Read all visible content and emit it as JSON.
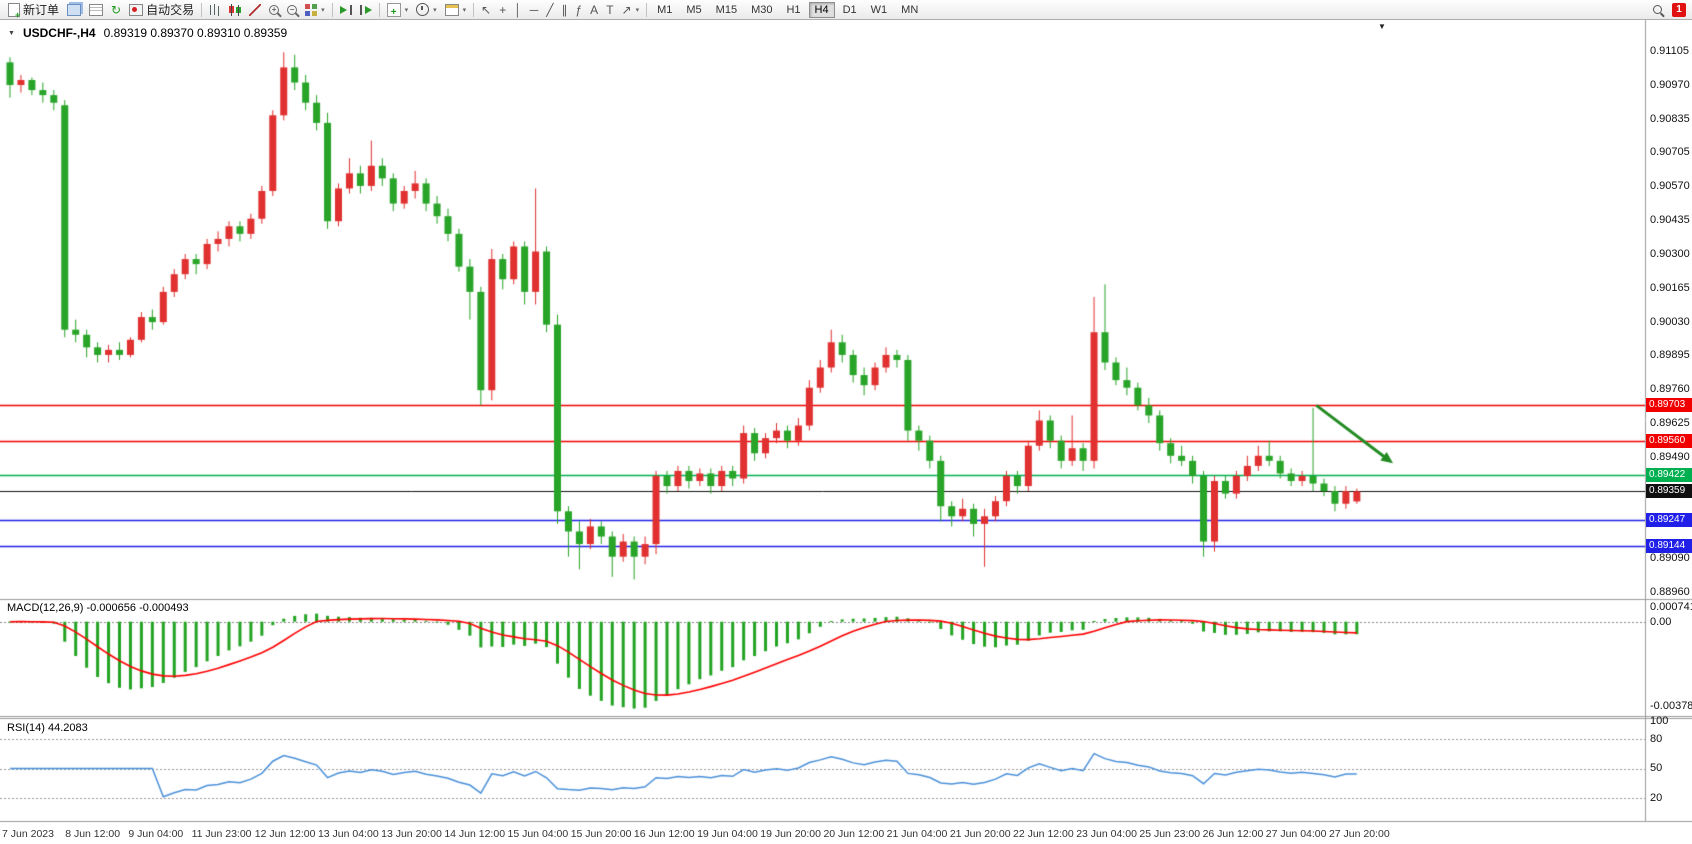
{
  "toolbar": {
    "new_order_label": "新订单",
    "auto_trading_label": "自动交易",
    "timeframes": [
      "M1",
      "M5",
      "M15",
      "M30",
      "H1",
      "H4",
      "D1",
      "W1",
      "MN"
    ],
    "active_timeframe": "H4",
    "notification_count": "1"
  },
  "icons": {
    "refresh": "↻",
    "caret": "▾",
    "down_triangle": "▼",
    "cursor": "↖",
    "crosshair": "+",
    "vertical_line": "│",
    "horizontal_line": "─",
    "trendline": "╱",
    "channel": "∥",
    "fibonacci": "ƒ",
    "text_tool": "A",
    "label_tool": "T",
    "arrow_tool": "↗",
    "zoom_in": "+",
    "zoom_out": "−",
    "indicators_plus": "+"
  },
  "chart": {
    "title": "USDCHF-,H4",
    "ohlc": "0.89319 0.89370 0.89310 0.89359",
    "macd_label": "MACD(12,26,9) -0.000656 -0.000493",
    "rsi_label": "RSI(14) 44.2083",
    "price_axis_labels": [
      "0.91105",
      "0.90970",
      "0.90835",
      "0.90705",
      "0.90570",
      "0.90435",
      "0.90300",
      "0.90165",
      "0.90030",
      "0.89895",
      "0.89760",
      "0.89625",
      "0.89490",
      "0.89355",
      "0.89225",
      "0.89090",
      "0.88960"
    ],
    "macd_axis_labels": {
      "max": "0.000741",
      "zero": "0.00",
      "min": "-0.003781"
    },
    "rsi_axis_labels": [
      "100",
      "80",
      "50",
      "20"
    ],
    "time_axis_labels": [
      "7 Jun 2023",
      "8 Jun 12:00",
      "9 Jun 04:00",
      "11 Jun 23:00",
      "12 Jun 12:00",
      "13 Jun 04:00",
      "13 Jun 20:00",
      "14 Jun 12:00",
      "15 Jun 04:00",
      "15 Jun 20:00",
      "16 Jun 12:00",
      "19 Jun 04:00",
      "19 Jun 20:00",
      "20 Jun 12:00",
      "21 Jun 04:00",
      "21 Jun 20:00",
      "22 Jun 12:00",
      "23 Jun 04:00",
      "25 Jun 23:00",
      "26 Jun 12:00",
      "27 Jun 04:00",
      "27 Jun 20:00"
    ]
  },
  "chart_data": {
    "type": "candlestick",
    "symbol": "USDCHF-",
    "period": "H4",
    "price_range": {
      "max": 0.91105,
      "min": 0.8896
    },
    "colors": {
      "up": "#e03030",
      "down": "#28a428",
      "macd_hist": "#22a322",
      "macd_signal": "#ff0000",
      "rsi": "#4a90d9",
      "arrow": "#228b22"
    },
    "levels": [
      {
        "price": 0.89703,
        "color": "#f20000",
        "label": "0.89703"
      },
      {
        "price": 0.8956,
        "color": "#f20000",
        "label": "0.89560"
      },
      {
        "price": 0.89422,
        "color": "#00b050",
        "label": "0.89422"
      },
      {
        "price": 0.89359,
        "color": "#101010",
        "label": "0.89359"
      },
      {
        "price": 0.89247,
        "color": "#2020e8",
        "label": "0.89247"
      },
      {
        "price": 0.89144,
        "color": "#2020e8",
        "label": "0.89144"
      }
    ],
    "annotation_arrow": {
      "from_index": 119.3,
      "from_price": 0.897,
      "to_index": 126.3,
      "to_price": 0.8947
    },
    "macd": {
      "fast": 12,
      "slow": 26,
      "signal": 9,
      "current": -0.000656,
      "current_signal": -0.000493,
      "range": {
        "max": 0.000741,
        "min": -0.003781
      }
    },
    "rsi": {
      "period": 14,
      "current": 44.2083,
      "levels": [
        80,
        50,
        20
      ],
      "range": {
        "max": 100,
        "min": 0
      }
    },
    "candles": [
      [
        0.9106,
        0.9108,
        0.9092,
        0.9097
      ],
      [
        0.9097,
        0.9101,
        0.9094,
        0.9099
      ],
      [
        0.9099,
        0.91,
        0.9093,
        0.9095
      ],
      [
        0.9095,
        0.9098,
        0.909,
        0.9093
      ],
      [
        0.9093,
        0.9095,
        0.9087,
        0.909
      ],
      [
        0.9089,
        0.9091,
        0.8997,
        0.9
      ],
      [
        0.9,
        0.9004,
        0.8995,
        0.8998
      ],
      [
        0.8998,
        0.9,
        0.8989,
        0.8993
      ],
      [
        0.8993,
        0.8995,
        0.8987,
        0.899
      ],
      [
        0.899,
        0.8994,
        0.8987,
        0.8992
      ],
      [
        0.8992,
        0.8995,
        0.8988,
        0.899
      ],
      [
        0.899,
        0.8997,
        0.8989,
        0.8996
      ],
      [
        0.8996,
        0.9007,
        0.8995,
        0.9005
      ],
      [
        0.9005,
        0.9008,
        0.9,
        0.9003
      ],
      [
        0.9003,
        0.9017,
        0.9002,
        0.9015
      ],
      [
        0.9015,
        0.9024,
        0.9013,
        0.9022
      ],
      [
        0.9022,
        0.903,
        0.902,
        0.9028
      ],
      [
        0.9028,
        0.903,
        0.9022,
        0.9026
      ],
      [
        0.9026,
        0.9036,
        0.9024,
        0.9034
      ],
      [
        0.9034,
        0.9039,
        0.9031,
        0.9036
      ],
      [
        0.9036,
        0.9043,
        0.9033,
        0.9041
      ],
      [
        0.9041,
        0.9043,
        0.9035,
        0.9038
      ],
      [
        0.9038,
        0.9046,
        0.9036,
        0.9044
      ],
      [
        0.9044,
        0.9057,
        0.9042,
        0.9055
      ],
      [
        0.9055,
        0.9087,
        0.9053,
        0.9085
      ],
      [
        0.9085,
        0.911,
        0.9083,
        0.9104
      ],
      [
        0.9104,
        0.9109,
        0.9095,
        0.9098
      ],
      [
        0.9098,
        0.9101,
        0.9087,
        0.909
      ],
      [
        0.909,
        0.9093,
        0.9079,
        0.9082
      ],
      [
        0.9082,
        0.9086,
        0.904,
        0.9043
      ],
      [
        0.9043,
        0.9058,
        0.9041,
        0.9056
      ],
      [
        0.9056,
        0.9068,
        0.9054,
        0.9062
      ],
      [
        0.9062,
        0.9065,
        0.9054,
        0.9057
      ],
      [
        0.9057,
        0.9075,
        0.9055,
        0.9065
      ],
      [
        0.9065,
        0.9068,
        0.9057,
        0.906
      ],
      [
        0.906,
        0.9062,
        0.9047,
        0.905
      ],
      [
        0.905,
        0.9057,
        0.9048,
        0.9055
      ],
      [
        0.9055,
        0.9063,
        0.9052,
        0.9058
      ],
      [
        0.9058,
        0.906,
        0.9047,
        0.905
      ],
      [
        0.905,
        0.9053,
        0.9042,
        0.9045
      ],
      [
        0.9045,
        0.9048,
        0.9035,
        0.9038
      ],
      [
        0.9038,
        0.904,
        0.9023,
        0.9025
      ],
      [
        0.9025,
        0.9028,
        0.9004,
        0.9015
      ],
      [
        0.9015,
        0.9017,
        0.897,
        0.8976
      ],
      [
        0.8976,
        0.9032,
        0.8972,
        0.9028
      ],
      [
        0.9028,
        0.903,
        0.9016,
        0.902
      ],
      [
        0.902,
        0.9035,
        0.9018,
        0.9033
      ],
      [
        0.9033,
        0.9035,
        0.901,
        0.9015
      ],
      [
        0.9015,
        0.9056,
        0.901,
        0.9031
      ],
      [
        0.9031,
        0.9033,
        0.8999,
        0.9002
      ],
      [
        0.9002,
        0.9006,
        0.8923,
        0.8928
      ],
      [
        0.8928,
        0.893,
        0.891,
        0.892
      ],
      [
        0.892,
        0.8924,
        0.8905,
        0.8915
      ],
      [
        0.8915,
        0.8925,
        0.8913,
        0.8922
      ],
      [
        0.8922,
        0.8924,
        0.8915,
        0.8918
      ],
      [
        0.8918,
        0.892,
        0.8902,
        0.891
      ],
      [
        0.891,
        0.8919,
        0.8908,
        0.8916
      ],
      [
        0.8916,
        0.8918,
        0.8901,
        0.891
      ],
      [
        0.891,
        0.8918,
        0.8907,
        0.8915
      ],
      [
        0.8915,
        0.8944,
        0.8911,
        0.8942
      ],
      [
        0.8942,
        0.8944,
        0.8935,
        0.8938
      ],
      [
        0.8938,
        0.8946,
        0.8936,
        0.8944
      ],
      [
        0.8944,
        0.8946,
        0.8937,
        0.894
      ],
      [
        0.894,
        0.8945,
        0.8938,
        0.8943
      ],
      [
        0.8943,
        0.8945,
        0.8935,
        0.8938
      ],
      [
        0.8938,
        0.8946,
        0.8936,
        0.8944
      ],
      [
        0.8944,
        0.8946,
        0.8938,
        0.8941
      ],
      [
        0.8941,
        0.8962,
        0.8939,
        0.8959
      ],
      [
        0.8959,
        0.8961,
        0.8948,
        0.8951
      ],
      [
        0.8951,
        0.8959,
        0.8949,
        0.8957
      ],
      [
        0.8957,
        0.8963,
        0.8955,
        0.896
      ],
      [
        0.896,
        0.8962,
        0.8953,
        0.8956
      ],
      [
        0.8956,
        0.8965,
        0.8954,
        0.8962
      ],
      [
        0.8962,
        0.898,
        0.896,
        0.8977
      ],
      [
        0.8977,
        0.8988,
        0.8975,
        0.8985
      ],
      [
        0.8985,
        0.9,
        0.8983,
        0.8995
      ],
      [
        0.8995,
        0.8998,
        0.8987,
        0.899
      ],
      [
        0.899,
        0.8992,
        0.8979,
        0.8982
      ],
      [
        0.8982,
        0.8985,
        0.8974,
        0.8978
      ],
      [
        0.8978,
        0.8987,
        0.8976,
        0.8985
      ],
      [
        0.8985,
        0.8993,
        0.8983,
        0.899
      ],
      [
        0.899,
        0.8992,
        0.8985,
        0.8988
      ],
      [
        0.8988,
        0.899,
        0.8956,
        0.896
      ],
      [
        0.896,
        0.8962,
        0.8952,
        0.8956
      ],
      [
        0.8956,
        0.8958,
        0.8945,
        0.8948
      ],
      [
        0.8948,
        0.895,
        0.8924,
        0.893
      ],
      [
        0.893,
        0.8932,
        0.8922,
        0.8926
      ],
      [
        0.8926,
        0.8933,
        0.8924,
        0.8929
      ],
      [
        0.8929,
        0.8931,
        0.8918,
        0.8923
      ],
      [
        0.8923,
        0.8929,
        0.8906,
        0.8926
      ],
      [
        0.8926,
        0.8934,
        0.8924,
        0.8932
      ],
      [
        0.8932,
        0.8944,
        0.893,
        0.8942
      ],
      [
        0.8942,
        0.8944,
        0.8935,
        0.8938
      ],
      [
        0.8938,
        0.8956,
        0.8936,
        0.8954
      ],
      [
        0.8954,
        0.8968,
        0.8952,
        0.8964
      ],
      [
        0.8964,
        0.8966,
        0.8953,
        0.8956
      ],
      [
        0.8956,
        0.8958,
        0.8945,
        0.8948
      ],
      [
        0.8948,
        0.8966,
        0.8946,
        0.8953
      ],
      [
        0.8953,
        0.8955,
        0.8944,
        0.8948
      ],
      [
        0.8948,
        0.9013,
        0.8945,
        0.8999
      ],
      [
        0.8999,
        0.9018,
        0.8984,
        0.8987
      ],
      [
        0.8987,
        0.8989,
        0.8978,
        0.898
      ],
      [
        0.898,
        0.8985,
        0.8974,
        0.8977
      ],
      [
        0.8977,
        0.8979,
        0.8968,
        0.897
      ],
      [
        0.897,
        0.8973,
        0.8963,
        0.8966
      ],
      [
        0.8966,
        0.8968,
        0.8952,
        0.8955
      ],
      [
        0.8955,
        0.8957,
        0.8947,
        0.895
      ],
      [
        0.895,
        0.8954,
        0.8946,
        0.8948
      ],
      [
        0.8948,
        0.895,
        0.8939,
        0.8942
      ],
      [
        0.8942,
        0.8944,
        0.891,
        0.8916
      ],
      [
        0.8916,
        0.8942,
        0.8912,
        0.894
      ],
      [
        0.894,
        0.8942,
        0.8933,
        0.8935
      ],
      [
        0.8935,
        0.8944,
        0.8933,
        0.8942
      ],
      [
        0.8942,
        0.895,
        0.894,
        0.8946
      ],
      [
        0.8946,
        0.8954,
        0.8944,
        0.895
      ],
      [
        0.895,
        0.8956,
        0.8946,
        0.8948
      ],
      [
        0.8948,
        0.895,
        0.8941,
        0.8943
      ],
      [
        0.8943,
        0.8945,
        0.8938,
        0.894
      ],
      [
        0.894,
        0.8944,
        0.8938,
        0.8942
      ],
      [
        0.8942,
        0.8969,
        0.8936,
        0.8939
      ],
      [
        0.8939,
        0.8941,
        0.8934,
        0.8936
      ],
      [
        0.8936,
        0.8938,
        0.8928,
        0.8931
      ],
      [
        0.8931,
        0.8938,
        0.8929,
        0.8936
      ],
      [
        0.89319,
        0.8937,
        0.8931,
        0.89359
      ]
    ]
  }
}
